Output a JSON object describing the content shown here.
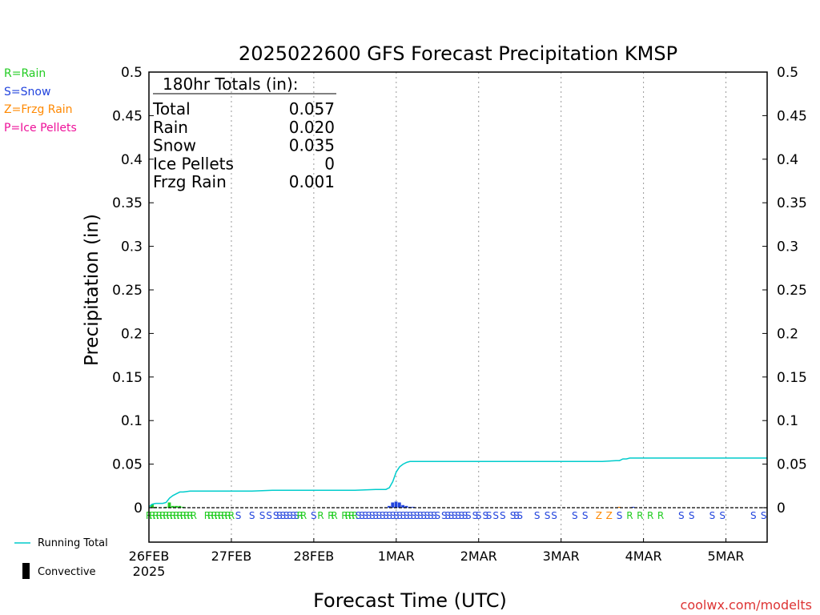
{
  "chart_data": {
    "type": "line",
    "title": "2025022600 GFS Forecast Precipitation KMSP",
    "xlabel": "Forecast Time (UTC)",
    "ylabel": "Precipitation (in)",
    "ylim": [
      0,
      0.5
    ],
    "y_ticks": [
      "0",
      "0.05",
      "0.1",
      "0.15",
      "0.2",
      "0.25",
      "0.3",
      "0.35",
      "0.4",
      "0.45",
      "0.5"
    ],
    "xlim": [
      0,
      180
    ],
    "x_ticks": [
      {
        "hour": 0,
        "label": "26FEB"
      },
      {
        "hour": 24,
        "label": "27FEB"
      },
      {
        "hour": 48,
        "label": "28FEB"
      },
      {
        "hour": 72,
        "label": "1MAR"
      },
      {
        "hour": 96,
        "label": "2MAR"
      },
      {
        "hour": 120,
        "label": "3MAR"
      },
      {
        "hour": 144,
        "label": "4MAR"
      },
      {
        "hour": 168,
        "label": "5MAR"
      }
    ],
    "x_year": "2025",
    "grid": "x dotted",
    "legend_types": [
      {
        "label": "R=Rain",
        "color": "#22cc22"
      },
      {
        "label": "S=Snow",
        "color": "#2244dd"
      },
      {
        "label": "Z=Frzg Rain",
        "color": "#ff8800"
      },
      {
        "label": "P=Ice Pellets",
        "color": "#ee1199"
      }
    ],
    "legend_bottom": {
      "running_total": "Running Total",
      "convective": "Convective"
    },
    "totals": {
      "header": "180hr Totals (in):",
      "rows": [
        {
          "label": "Total",
          "value": "0.057"
        },
        {
          "label": "Rain",
          "value": "0.020"
        },
        {
          "label": "Snow",
          "value": "0.035"
        },
        {
          "label": "Ice Pellets",
          "value": "0"
        },
        {
          "label": "Frzg Rain",
          "value": "0.001"
        }
      ]
    },
    "series": [
      {
        "name": "Running Total",
        "color": "#00cccc",
        "x": [
          0,
          1,
          2,
          3,
          4,
          5,
          6,
          7,
          8,
          9,
          10,
          12,
          14,
          18,
          24,
          30,
          36,
          42,
          48,
          54,
          60,
          66,
          69,
          70,
          71,
          72,
          73,
          74,
          75,
          76,
          78,
          84,
          96,
          108,
          120,
          132,
          136,
          137,
          138,
          139,
          140,
          141,
          144,
          156,
          168,
          180
        ],
        "y": [
          0.001,
          0.004,
          0.005,
          0.005,
          0.005,
          0.006,
          0.011,
          0.014,
          0.016,
          0.018,
          0.018,
          0.019,
          0.019,
          0.019,
          0.019,
          0.019,
          0.02,
          0.02,
          0.02,
          0.02,
          0.02,
          0.021,
          0.021,
          0.023,
          0.03,
          0.041,
          0.047,
          0.05,
          0.052,
          0.053,
          0.053,
          0.053,
          0.053,
          0.053,
          0.053,
          0.053,
          0.054,
          0.054,
          0.056,
          0.056,
          0.057,
          0.057,
          0.057,
          0.057,
          0.057,
          0.057
        ]
      }
    ],
    "bars": [
      {
        "x": 1,
        "y": 0.004,
        "type": "R"
      },
      {
        "x": 2,
        "y": 0.001,
        "type": "R"
      },
      {
        "x": 5,
        "y": 0.001,
        "type": "R"
      },
      {
        "x": 6,
        "y": 0.006,
        "type": "R"
      },
      {
        "x": 7,
        "y": 0.002,
        "type": "R"
      },
      {
        "x": 8,
        "y": 0.002,
        "type": "R"
      },
      {
        "x": 9,
        "y": 0.002,
        "type": "R"
      },
      {
        "x": 10,
        "y": 0.001,
        "type": "R"
      },
      {
        "x": 70,
        "y": 0.002,
        "type": "S"
      },
      {
        "x": 71,
        "y": 0.006,
        "type": "S"
      },
      {
        "x": 72,
        "y": 0.007,
        "type": "S"
      },
      {
        "x": 73,
        "y": 0.006,
        "type": "S"
      },
      {
        "x": 74,
        "y": 0.003,
        "type": "S"
      },
      {
        "x": 75,
        "y": 0.002,
        "type": "S"
      },
      {
        "x": 76,
        "y": 0.001,
        "type": "S"
      },
      {
        "x": 77,
        "y": 0.001,
        "type": "S"
      },
      {
        "x": 137,
        "y": 0.001,
        "type": "Z"
      },
      {
        "x": 141,
        "y": 0.001,
        "type": "S"
      }
    ],
    "type_markers": [
      {
        "x": 0,
        "t": "R"
      },
      {
        "x": 1,
        "t": "R"
      },
      {
        "x": 2,
        "t": "R"
      },
      {
        "x": 3,
        "t": "R"
      },
      {
        "x": 4,
        "t": "R"
      },
      {
        "x": 5,
        "t": "R"
      },
      {
        "x": 6,
        "t": "R"
      },
      {
        "x": 7,
        "t": "R"
      },
      {
        "x": 8,
        "t": "R"
      },
      {
        "x": 9,
        "t": "R"
      },
      {
        "x": 10,
        "t": "R"
      },
      {
        "x": 11,
        "t": "R"
      },
      {
        "x": 12,
        "t": "R"
      },
      {
        "x": 13,
        "t": "R"
      },
      {
        "x": 17,
        "t": "R"
      },
      {
        "x": 18,
        "t": "R"
      },
      {
        "x": 19,
        "t": "R"
      },
      {
        "x": 20,
        "t": "R"
      },
      {
        "x": 21,
        "t": "R"
      },
      {
        "x": 22,
        "t": "R"
      },
      {
        "x": 23,
        "t": "R"
      },
      {
        "x": 24,
        "t": "R"
      },
      {
        "x": 26,
        "t": "S"
      },
      {
        "x": 30,
        "t": "S"
      },
      {
        "x": 33,
        "t": "S"
      },
      {
        "x": 35,
        "t": "S"
      },
      {
        "x": 37,
        "t": "S"
      },
      {
        "x": 38,
        "t": "S"
      },
      {
        "x": 39,
        "t": "S"
      },
      {
        "x": 40,
        "t": "S"
      },
      {
        "x": 41,
        "t": "S"
      },
      {
        "x": 42,
        "t": "S"
      },
      {
        "x": 43,
        "t": "S"
      },
      {
        "x": 44,
        "t": "R"
      },
      {
        "x": 45,
        "t": "R"
      },
      {
        "x": 48,
        "t": "S"
      },
      {
        "x": 50,
        "t": "R"
      },
      {
        "x": 53,
        "t": "R"
      },
      {
        "x": 54,
        "t": "R"
      },
      {
        "x": 57,
        "t": "R"
      },
      {
        "x": 58,
        "t": "R"
      },
      {
        "x": 59,
        "t": "R"
      },
      {
        "x": 60,
        "t": "R"
      },
      {
        "x": 61,
        "t": "S"
      },
      {
        "x": 62,
        "t": "S"
      },
      {
        "x": 63,
        "t": "S"
      },
      {
        "x": 64,
        "t": "S"
      },
      {
        "x": 65,
        "t": "S"
      },
      {
        "x": 66,
        "t": "S"
      },
      {
        "x": 67,
        "t": "S"
      },
      {
        "x": 68,
        "t": "S"
      },
      {
        "x": 69,
        "t": "S"
      },
      {
        "x": 70,
        "t": "S"
      },
      {
        "x": 71,
        "t": "S"
      },
      {
        "x": 72,
        "t": "S"
      },
      {
        "x": 73,
        "t": "S"
      },
      {
        "x": 74,
        "t": "S"
      },
      {
        "x": 75,
        "t": "S"
      },
      {
        "x": 76,
        "t": "S"
      },
      {
        "x": 77,
        "t": "S"
      },
      {
        "x": 78,
        "t": "S"
      },
      {
        "x": 79,
        "t": "S"
      },
      {
        "x": 80,
        "t": "S"
      },
      {
        "x": 81,
        "t": "S"
      },
      {
        "x": 82,
        "t": "S"
      },
      {
        "x": 83,
        "t": "S"
      },
      {
        "x": 84,
        "t": "S"
      },
      {
        "x": 86,
        "t": "S"
      },
      {
        "x": 87,
        "t": "S"
      },
      {
        "x": 88,
        "t": "S"
      },
      {
        "x": 89,
        "t": "S"
      },
      {
        "x": 90,
        "t": "S"
      },
      {
        "x": 91,
        "t": "S"
      },
      {
        "x": 92,
        "t": "S"
      },
      {
        "x": 93,
        "t": "S"
      },
      {
        "x": 95,
        "t": "S"
      },
      {
        "x": 96,
        "t": "S"
      },
      {
        "x": 98,
        "t": "S"
      },
      {
        "x": 99,
        "t": "S"
      },
      {
        "x": 101,
        "t": "S"
      },
      {
        "x": 103,
        "t": "S"
      },
      {
        "x": 106,
        "t": "S"
      },
      {
        "x": 107,
        "t": "S"
      },
      {
        "x": 108,
        "t": "S"
      },
      {
        "x": 113,
        "t": "S"
      },
      {
        "x": 116,
        "t": "S"
      },
      {
        "x": 118,
        "t": "S"
      },
      {
        "x": 124,
        "t": "S"
      },
      {
        "x": 127,
        "t": "S"
      },
      {
        "x": 131,
        "t": "Z"
      },
      {
        "x": 134,
        "t": "Z"
      },
      {
        "x": 137,
        "t": "S"
      },
      {
        "x": 140,
        "t": "R"
      },
      {
        "x": 143,
        "t": "R"
      },
      {
        "x": 146,
        "t": "R"
      },
      {
        "x": 149,
        "t": "R"
      },
      {
        "x": 155,
        "t": "S"
      },
      {
        "x": 158,
        "t": "S"
      },
      {
        "x": 164,
        "t": "S"
      },
      {
        "x": 167,
        "t": "S"
      },
      {
        "x": 176,
        "t": "S"
      },
      {
        "x": 179,
        "t": "S"
      }
    ],
    "credit": "coolwx.com/modelts"
  }
}
